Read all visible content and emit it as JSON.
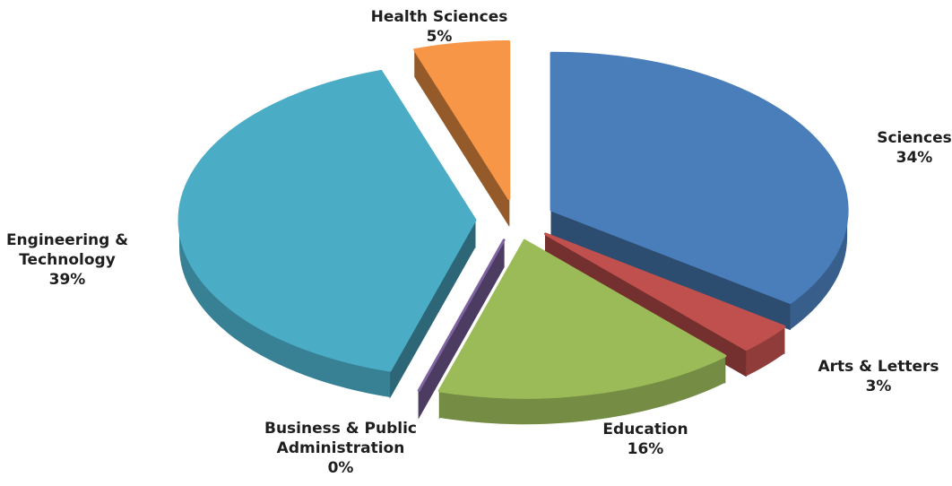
{
  "chart_data": {
    "type": "pie",
    "categories": [
      "Sciences",
      "Arts & Letters",
      "Education",
      "Business & Public Administration",
      "Engineering & Technology",
      "Health Sciences"
    ],
    "values": [
      34,
      3,
      16,
      0,
      39,
      5
    ],
    "value_labels": [
      "34%",
      "3%",
      "16%",
      "0%",
      "39%",
      "5%"
    ],
    "colors": [
      "#4a7ebb",
      "#c0504d",
      "#9bbb59",
      "#8064a2",
      "#4bacc6",
      "#f79646"
    ]
  }
}
